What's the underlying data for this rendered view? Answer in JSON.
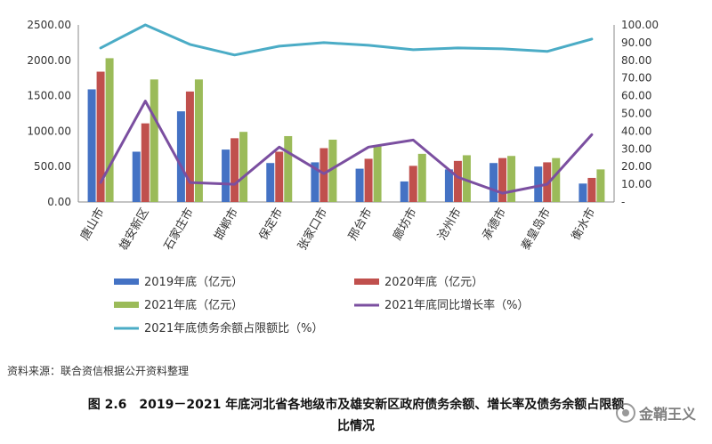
{
  "chart_data": {
    "type": "bar",
    "categories": [
      "唐山市",
      "雄安新区",
      "石家庄市",
      "邯郸市",
      "保定市",
      "张家口市",
      "邢台市",
      "廊坊市",
      "沧州市",
      "承德市",
      "秦皇岛市",
      "衡水市"
    ],
    "series": [
      {
        "name": "2019年底（亿元）",
        "type": "bar",
        "axis": "left",
        "color": "#4472C4",
        "values": [
          1590,
          710,
          1280,
          740,
          550,
          560,
          470,
          290,
          460,
          550,
          500,
          260
        ]
      },
      {
        "name": "2020年底（亿元）",
        "type": "bar",
        "axis": "left",
        "color": "#C0504D",
        "values": [
          1840,
          1110,
          1560,
          900,
          710,
          760,
          610,
          510,
          580,
          620,
          560,
          340
        ]
      },
      {
        "name": "2021年底（亿元）",
        "type": "bar",
        "axis": "left",
        "color": "#9BBB59",
        "values": [
          2030,
          1730,
          1730,
          990,
          930,
          880,
          790,
          680,
          660,
          650,
          620,
          460
        ]
      },
      {
        "name": "2021年底同比增长率（%）",
        "type": "line",
        "axis": "right",
        "color": "#7B4FA0",
        "values": [
          11,
          57,
          11,
          10,
          31,
          16,
          31,
          35,
          14,
          5,
          10,
          38
        ]
      },
      {
        "name": "2021年底债务余额占限额比（%）",
        "type": "line",
        "axis": "right",
        "color": "#4BACC6",
        "values": [
          87,
          100,
          89,
          83,
          88,
          90,
          88.5,
          86,
          87,
          86.5,
          85,
          92
        ]
      }
    ],
    "y_left": {
      "min": 0,
      "max": 2500,
      "ticks": [
        "0.00",
        "500.00",
        "1000.00",
        "1500.00",
        "2000.00",
        "2500.00"
      ]
    },
    "y_right": {
      "min": 0,
      "max": 100,
      "ticks": [
        "-",
        "10.00",
        "20.00",
        "30.00",
        "40.00",
        "50.00",
        "60.00",
        "70.00",
        "80.00",
        "90.00",
        "100.00"
      ]
    },
    "grid": false,
    "legend_position": "bottom"
  },
  "source_note": "资料来源：联合资信根据公开资料整理",
  "caption": {
    "line1": "图 2.6　2019－2021 年底河北省各地级市及雄安新区政府债务余额、增长率及债务余额占限额",
    "line2": "比情况"
  },
  "watermark": {
    "text": "金鞘王义",
    "logo_icon": "wechat-like-circle-icon"
  }
}
